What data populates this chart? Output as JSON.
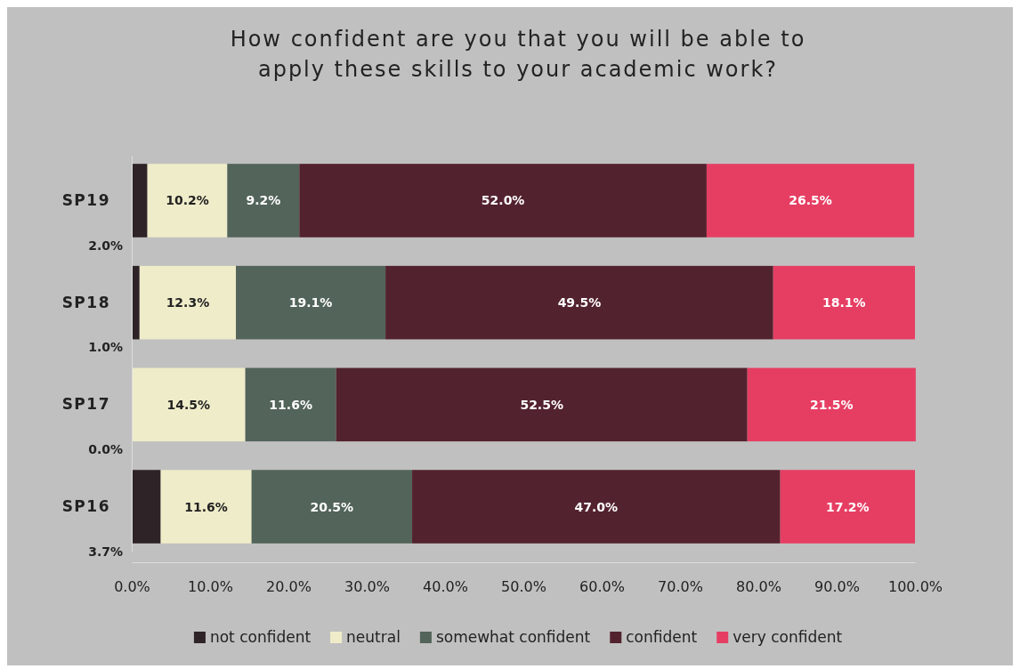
{
  "chart_data": {
    "type": "bar",
    "orientation": "horizontal",
    "stacked": true,
    "title": "How confident are you that you will be able to apply these skills to your academic work?",
    "categories": [
      "SP19",
      "SP18",
      "SP17",
      "SP16"
    ],
    "series": [
      {
        "name": "not confident",
        "color": "#2e2326",
        "values": [
          2.0,
          1.0,
          0.0,
          3.7
        ],
        "value_labels": [
          "2.0%",
          "1.0%",
          "0.0%",
          "3.7%"
        ]
      },
      {
        "name": "neutral",
        "color": "#efecc9",
        "values": [
          10.2,
          12.3,
          14.5,
          11.6
        ],
        "value_labels": [
          "10.2%",
          "12.3%",
          "14.5%",
          "11.6%"
        ]
      },
      {
        "name": "somewhat confident",
        "color": "#53645a",
        "values": [
          9.2,
          19.1,
          11.6,
          20.5
        ],
        "value_labels": [
          "9.2%",
          "19.1%",
          "11.6%",
          "20.5%"
        ]
      },
      {
        "name": "confident",
        "color": "#53222f",
        "values": [
          52.0,
          49.5,
          52.5,
          47.0
        ],
        "value_labels": [
          "52.0%",
          "49.5%",
          "52.5%",
          "47.0%"
        ]
      },
      {
        "name": "very confident",
        "color": "#e63e63",
        "values": [
          26.5,
          18.1,
          21.5,
          17.2
        ],
        "value_labels": [
          "26.5%",
          "18.1%",
          "21.5%",
          "17.2%"
        ]
      }
    ],
    "xlim": [
      0,
      100
    ],
    "xticks": [
      {
        "value": 0,
        "label": "0.0%"
      },
      {
        "value": 10,
        "label": "10.0%"
      },
      {
        "value": 20,
        "label": "20.0%"
      },
      {
        "value": 30,
        "label": "30.0%"
      },
      {
        "value": 40,
        "label": "40.0%"
      },
      {
        "value": 50,
        "label": "50.0%"
      },
      {
        "value": 60,
        "label": "60.0%"
      },
      {
        "value": 70,
        "label": "70.0%"
      },
      {
        "value": 80,
        "label": "80.0%"
      },
      {
        "value": 90,
        "label": "90.0%"
      },
      {
        "value": 100,
        "label": "100.0%"
      }
    ],
    "grid": false,
    "legend": "bottom"
  }
}
